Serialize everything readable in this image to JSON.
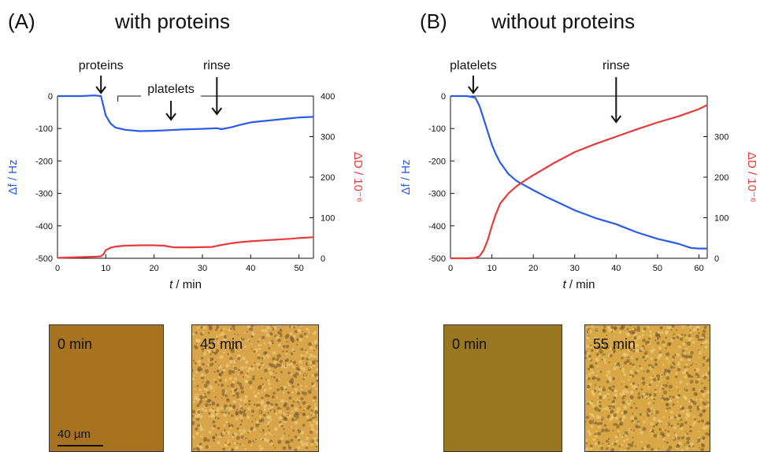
{
  "panels": [
    {
      "letter": "(A)",
      "title": "with proteins"
    },
    {
      "letter": "(B)",
      "title": "without proteins"
    }
  ],
  "colors": {
    "freq": "#2a5ce8",
    "diss": "#e83a3a"
  },
  "chart_data": [
    {
      "type": "line",
      "panel": "(A)",
      "xlabel": "t / min",
      "ylabel_left": "Δf / Hz",
      "ylabel_right": "ΔD / 10⁻⁶",
      "xlim": [
        0,
        53
      ],
      "ylim_left": [
        -500,
        0
      ],
      "ylim_right": [
        0,
        400
      ],
      "xticks": [
        0,
        10,
        20,
        30,
        40,
        50
      ],
      "yticks_left": [
        0,
        -100,
        -200,
        -300,
        -400,
        -500
      ],
      "yticks_right": [
        400,
        300,
        200,
        100,
        0
      ],
      "annotations": [
        {
          "text": "proteins",
          "x": 9
        },
        {
          "text": "platelets",
          "x": 23.5
        },
        {
          "text": "rinse",
          "x": 33
        }
      ],
      "bracket": {
        "start": 12.5,
        "end": 53
      },
      "series": [
        {
          "axis": "left",
          "color": "#2a5ce8",
          "x": [
            0,
            2,
            5,
            7.5,
            9,
            9.5,
            10,
            11,
            12,
            14,
            17,
            20,
            23,
            26,
            30,
            33,
            34,
            36,
            38,
            40,
            44,
            48,
            50,
            53
          ],
          "y": [
            0,
            0,
            0,
            2,
            0,
            -30,
            -60,
            -85,
            -97,
            -104,
            -108,
            -107,
            -105,
            -103,
            -101,
            -99,
            -102,
            -96,
            -88,
            -81,
            -75,
            -69,
            -66,
            -64
          ]
        },
        {
          "axis": "right",
          "color": "#e83a3a",
          "x": [
            0,
            2,
            5,
            8,
            9,
            9.5,
            10,
            11,
            12,
            14,
            17,
            20,
            22,
            24,
            28,
            32,
            34,
            36,
            38,
            40,
            44,
            48,
            50,
            53
          ],
          "y": [
            1,
            2,
            3,
            4,
            5,
            10,
            20,
            26,
            29,
            31,
            32,
            32,
            31,
            27,
            27,
            28,
            33,
            37,
            40,
            42,
            45,
            48,
            50,
            52
          ]
        }
      ]
    },
    {
      "type": "line",
      "panel": "(B)",
      "xlabel": "t / min",
      "ylabel_left": "Δf / Hz",
      "ylabel_right": "ΔD / 10⁻⁶",
      "xlim": [
        0,
        62
      ],
      "ylim_left": [
        -500,
        0
      ],
      "ylim_right": [
        0,
        400
      ],
      "xticks": [
        0,
        10,
        20,
        30,
        40,
        50,
        60
      ],
      "yticks_left": [
        0,
        -100,
        -200,
        -300,
        -400,
        -500
      ],
      "yticks_right": [
        300,
        200,
        100,
        0
      ],
      "annotations": [
        {
          "text": "platelets",
          "x": 5.5
        },
        {
          "text": "rinse",
          "x": 40
        }
      ],
      "bracket": {
        "start": 0,
        "end": 62
      },
      "series": [
        {
          "axis": "left",
          "color": "#2a5ce8",
          "x": [
            0,
            2,
            4,
            6,
            7,
            8,
            9,
            10,
            11,
            12,
            14,
            16,
            18,
            20,
            23,
            26,
            30,
            35,
            40,
            41,
            45,
            50,
            55,
            58,
            60,
            62
          ],
          "y": [
            0,
            0,
            0,
            -5,
            -30,
            -70,
            -110,
            -150,
            -180,
            -205,
            -240,
            -262,
            -276,
            -290,
            -310,
            -328,
            -352,
            -376,
            -395,
            -400,
            -420,
            -440,
            -455,
            -468,
            -470,
            -470
          ]
        },
        {
          "axis": "right",
          "color": "#e83a3a",
          "x": [
            0,
            2,
            4,
            6,
            7,
            8,
            9,
            10,
            11,
            12,
            14,
            16,
            18,
            20,
            25,
            30,
            35,
            40,
            45,
            50,
            55,
            60,
            62
          ],
          "y": [
            0,
            0,
            0,
            1,
            5,
            20,
            45,
            80,
            110,
            135,
            160,
            178,
            192,
            205,
            235,
            262,
            282,
            300,
            318,
            335,
            350,
            368,
            378
          ]
        }
      ]
    }
  ],
  "micrographs": [
    {
      "label": "0 min",
      "tint": "#b07a22"
    },
    {
      "label": "45 min",
      "tint": "#d9a54a"
    },
    {
      "label": "0 min",
      "tint": "#a27d24"
    },
    {
      "label": "55 min",
      "tint": "#d8a746"
    }
  ],
  "scalebar": {
    "label": "40 µm"
  }
}
